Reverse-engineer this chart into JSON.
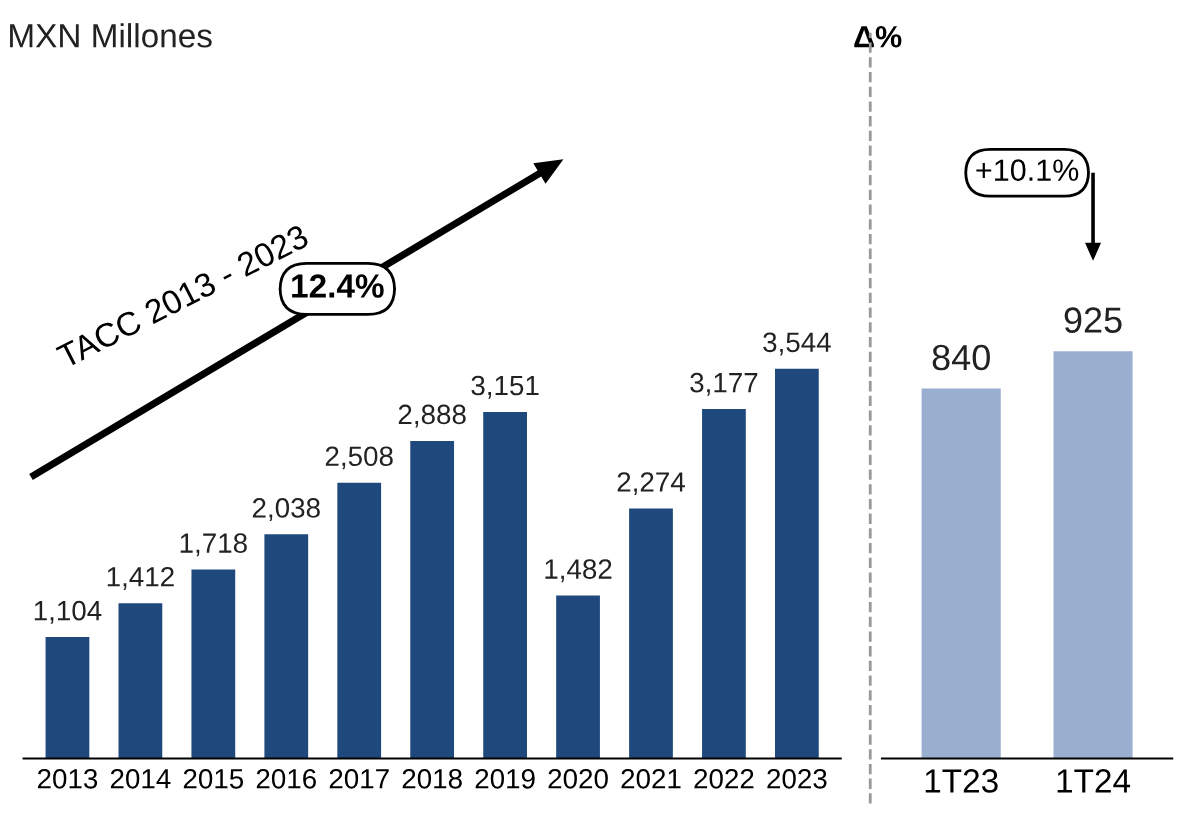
{
  "chart_data": [
    {
      "type": "bar",
      "title": "MXN Millones",
      "categories": [
        "2013",
        "2014",
        "2015",
        "2016",
        "2017",
        "2018",
        "2019",
        "2020",
        "2021",
        "2022",
        "2023"
      ],
      "values": [
        1104,
        1412,
        1718,
        2038,
        2508,
        2888,
        3151,
        1482,
        2274,
        3177,
        3544
      ],
      "color": "#1f497d",
      "data_labels": true,
      "value_labels": [
        "1,104",
        "1,412",
        "1,718",
        "2,038",
        "2,508",
        "2,888",
        "3,151",
        "1,482",
        "2,274",
        "3,177",
        "3,544"
      ],
      "annotations": [
        "TACC 2013 - 2023",
        "12.4%"
      ]
    },
    {
      "type": "bar",
      "title": "Δ%",
      "categories": [
        "1T23",
        "1T24"
      ],
      "values": [
        840,
        925
      ],
      "color": "#9aaed0",
      "data_labels": true,
      "annotations": [
        "+10.1%"
      ]
    }
  ]
}
